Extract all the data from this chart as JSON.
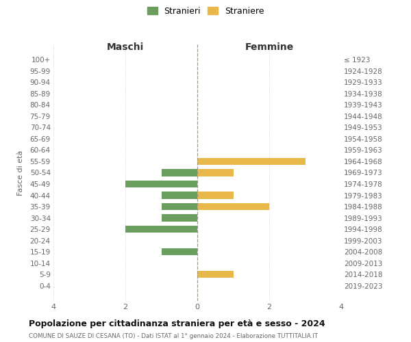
{
  "age_groups": [
    "100+",
    "95-99",
    "90-94",
    "85-89",
    "80-84",
    "75-79",
    "70-74",
    "65-69",
    "60-64",
    "55-59",
    "50-54",
    "45-49",
    "40-44",
    "35-39",
    "30-34",
    "25-29",
    "20-24",
    "15-19",
    "10-14",
    "5-9",
    "0-4"
  ],
  "birth_years": [
    "≤ 1923",
    "1924-1928",
    "1929-1933",
    "1934-1938",
    "1939-1943",
    "1944-1948",
    "1949-1953",
    "1954-1958",
    "1959-1963",
    "1964-1968",
    "1969-1973",
    "1974-1978",
    "1979-1983",
    "1984-1988",
    "1989-1993",
    "1994-1998",
    "1999-2003",
    "2004-2008",
    "2009-2013",
    "2014-2018",
    "2019-2023"
  ],
  "maschi": [
    0,
    0,
    0,
    0,
    0,
    0,
    0,
    0,
    0,
    0,
    1,
    2,
    1,
    1,
    1,
    2,
    0,
    1,
    0,
    0,
    0
  ],
  "femmine": [
    0,
    0,
    0,
    0,
    0,
    0,
    0,
    0,
    0,
    3,
    1,
    0,
    1,
    2,
    0,
    0,
    0,
    0,
    0,
    1,
    0
  ],
  "color_maschi": "#6a9e5e",
  "color_femmine": "#e8b84b",
  "title": "Popolazione per cittadinanza straniera per età e sesso - 2024",
  "subtitle": "COMUNE DI SAUZE DI CESANA (TO) - Dati ISTAT al 1° gennaio 2024 - Elaborazione TUTTITALIA.IT",
  "legend_stranieri": "Stranieri",
  "legend_straniere": "Straniere",
  "xlabel_left": "Maschi",
  "xlabel_right": "Femmine",
  "ylabel_left": "Fasce di età",
  "xlim": 4,
  "background_color": "#ffffff",
  "grid_color": "#cccccc"
}
